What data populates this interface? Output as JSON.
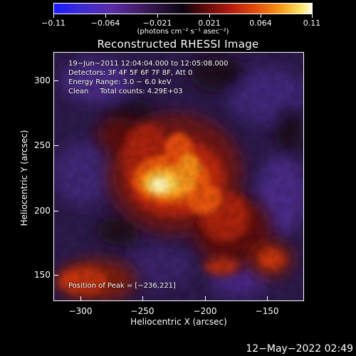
{
  "colorbar": {
    "tick_labels": [
      "−0.11",
      "−0.064",
      "−0.021",
      "0.021",
      "0.064",
      "0.11"
    ],
    "units": "(photons cm⁻² s⁻¹ asec⁻²)"
  },
  "title": "Reconstructed RHESSI Image",
  "info": {
    "time": "19−Jun−2011 12:04:04.000 to 12:05:08.000",
    "detectors": "Detectors: 3F 4F 5F 6F 7F 8F, Att 0",
    "energy": "Energy Range: 3.0 − 6.0 keV",
    "algorithm": "Clean     Total counts: 4.29E+03",
    "peak": "Position of Peak = [−236,221]"
  },
  "axes": {
    "xlabel": "Heliocentric X (arcsec)",
    "ylabel": "Heliocentric Y (arcsec)",
    "xticks": [
      "−300",
      "−250",
      "−200",
      "−150"
    ],
    "yticks": [
      "150",
      "200",
      "250",
      "300"
    ]
  },
  "footer": {
    "timestamp": "12−May−2022 02:49"
  }
}
